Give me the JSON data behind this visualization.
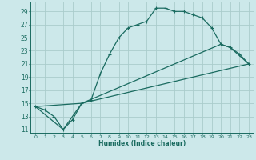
{
  "xlabel": "Humidex (Indice chaleur)",
  "bg_color": "#cce8ea",
  "grid_color": "#aacccc",
  "line_color": "#1a6b60",
  "xlim": [
    -0.5,
    23.5
  ],
  "ylim": [
    10.5,
    30.5
  ],
  "xticks": [
    0,
    1,
    2,
    3,
    4,
    5,
    6,
    7,
    8,
    9,
    10,
    11,
    12,
    13,
    14,
    15,
    16,
    17,
    18,
    19,
    20,
    21,
    22,
    23
  ],
  "yticks": [
    11,
    13,
    15,
    17,
    19,
    21,
    23,
    25,
    27,
    29
  ],
  "curve1_x": [
    0,
    1,
    2,
    3,
    4,
    5,
    6,
    7,
    8,
    9,
    10,
    11,
    12,
    13,
    14,
    15,
    16,
    17,
    18,
    19,
    20,
    21,
    22,
    23
  ],
  "curve1_y": [
    14.5,
    14.0,
    13.0,
    11.0,
    12.5,
    15.0,
    15.5,
    19.5,
    22.5,
    25.0,
    26.5,
    27.0,
    27.5,
    29.5,
    29.5,
    29.0,
    29.0,
    28.5,
    28.0,
    26.5,
    24.0,
    23.5,
    22.5,
    21.0
  ],
  "curve2_x": [
    0,
    3,
    5,
    23
  ],
  "curve2_y": [
    14.5,
    11.0,
    15.0,
    21.0
  ],
  "curve3_x": [
    0,
    5,
    20,
    21,
    23
  ],
  "curve3_y": [
    14.5,
    15.0,
    24.0,
    23.5,
    21.0
  ],
  "marker_x": [
    0,
    1,
    2,
    3,
    4,
    5,
    6,
    7,
    8,
    9,
    10,
    11,
    12,
    13,
    14,
    15,
    16,
    17,
    18,
    19,
    20,
    21,
    22,
    23
  ],
  "marker_y": [
    14.5,
    14.0,
    13.0,
    11.0,
    12.5,
    15.0,
    15.5,
    19.5,
    22.5,
    25.0,
    26.5,
    27.0,
    27.5,
    29.5,
    29.5,
    29.0,
    29.0,
    28.5,
    28.0,
    26.5,
    24.0,
    23.5,
    22.5,
    21.0
  ]
}
